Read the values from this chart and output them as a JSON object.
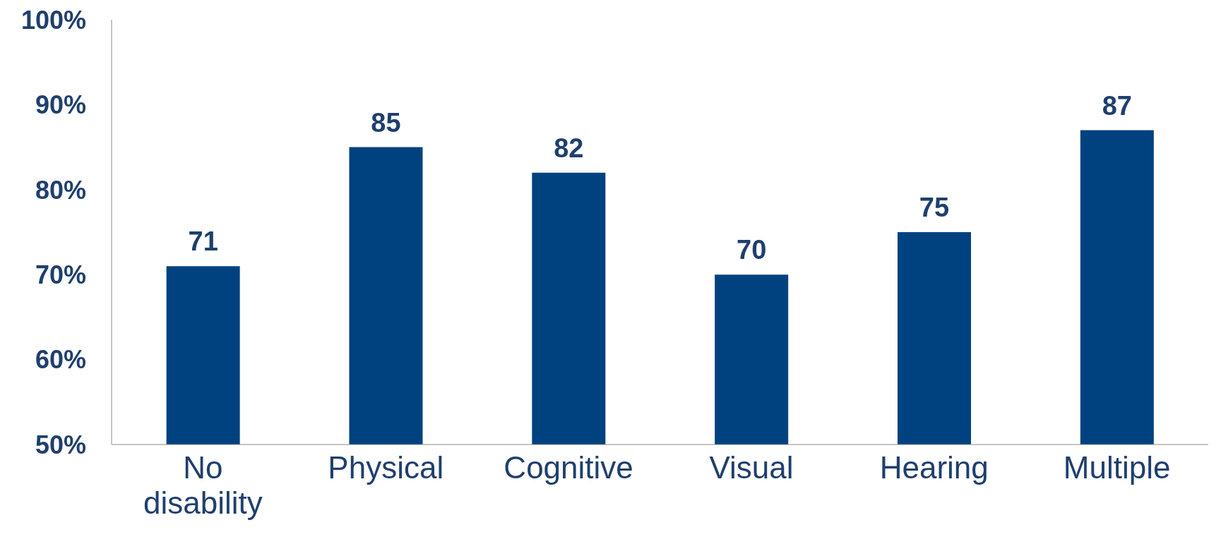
{
  "chart_data": {
    "type": "bar",
    "categories": [
      "No disability",
      "Physical",
      "Cognitive",
      "Visual",
      "Hearing",
      "Multiple"
    ],
    "values": [
      71,
      85,
      82,
      70,
      75,
      87
    ],
    "color": "#00427f",
    "data_labels": true,
    "ylim": [
      50,
      100
    ],
    "yticks": [
      {
        "value": 50,
        "label": "50%"
      },
      {
        "value": 60,
        "label": "60%"
      },
      {
        "value": 70,
        "label": "70%"
      },
      {
        "value": 80,
        "label": "80%"
      },
      {
        "value": 90,
        "label": "90%"
      },
      {
        "value": 100,
        "label": "100%"
      }
    ],
    "grid": false,
    "legend": false
  }
}
